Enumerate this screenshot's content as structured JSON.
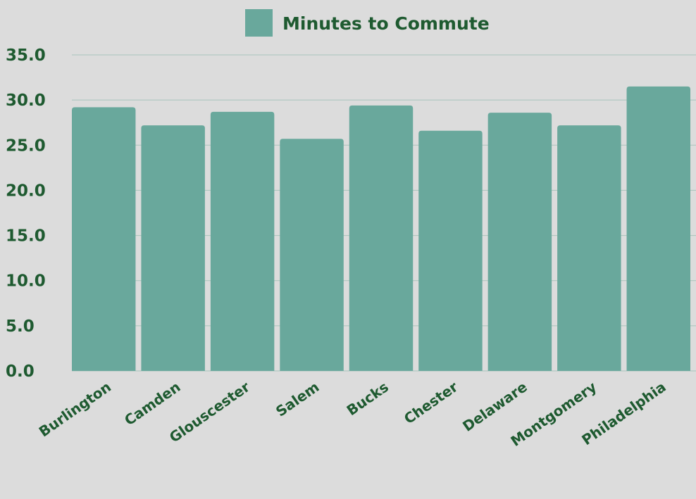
{
  "chart_data": {
    "type": "bar",
    "categories": [
      "Burlington",
      "Camden",
      "Glouscester",
      "Salem",
      "Bucks",
      "Chester",
      "Delaware",
      "Montgomery",
      "Philadelphia"
    ],
    "series": [
      {
        "name": "Minutes to Commute",
        "values": [
          29.2,
          27.2,
          28.7,
          25.7,
          29.4,
          26.6,
          28.6,
          27.2,
          31.5
        ]
      }
    ],
    "ylim": [
      0,
      35
    ],
    "yticks": [
      "0.0",
      "5.0",
      "10.0",
      "15.0",
      "20.0",
      "25.0",
      "30.0",
      "35.0"
    ],
    "grid": true,
    "legend": "top-center",
    "colors": {
      "bar": "#69a89c",
      "text": "#1e5a30",
      "grid": "#a9c4bb",
      "background": "#dcdcdc"
    }
  }
}
